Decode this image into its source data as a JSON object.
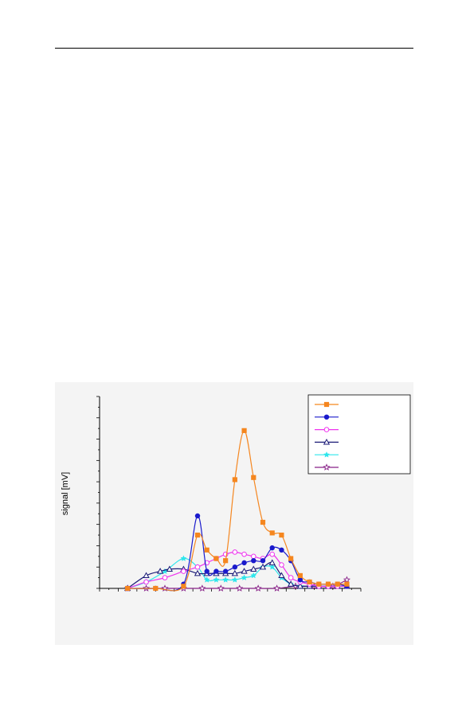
{
  "chart_data": {
    "type": "line",
    "title": "",
    "xlabel": "",
    "ylabel": "signal [mV]",
    "xlim": [
      0,
      28
    ],
    "ylim": [
      0,
      9
    ],
    "grid": false,
    "legend_position": "top-right",
    "series": [
      {
        "marker": "square-filled",
        "color": "#f5861f",
        "x": [
          3,
          6,
          9,
          10.5,
          11.5,
          12.5,
          13.5,
          14.5,
          15.5,
          16.5,
          17.5,
          18.5,
          19.5,
          20.5,
          21.5,
          22.5,
          23.5,
          24.5,
          25.5,
          26.5
        ],
        "y": [
          0,
          0,
          0.1,
          2.5,
          1.8,
          1.4,
          1.3,
          5.1,
          7.4,
          5.2,
          3.1,
          2.6,
          2.5,
          1.4,
          0.6,
          0.3,
          0.2,
          0.2,
          0.2,
          0.2
        ]
      },
      {
        "marker": "circle-filled",
        "color": "#1a1acc",
        "x": [
          3,
          6,
          9,
          10.5,
          11.5,
          12.5,
          13.5,
          14.5,
          15.5,
          16.5,
          17.5,
          18.5,
          19.5,
          20.5,
          21.5,
          22.5,
          23.5,
          24.5,
          25.5,
          26.5
        ],
        "y": [
          0,
          0,
          0.2,
          3.4,
          0.8,
          0.8,
          0.8,
          1.0,
          1.2,
          1.3,
          1.3,
          1.9,
          1.8,
          1.3,
          0.4,
          0.3,
          0.2,
          0.2,
          0.2,
          0.1
        ]
      },
      {
        "marker": "circle-open",
        "color": "#ee33ee",
        "x": [
          3,
          5,
          7,
          9,
          10.5,
          11.5,
          12.5,
          13.5,
          14.5,
          15.5,
          16.5,
          17.5,
          18.5,
          19.5,
          20.5,
          21.5,
          22.5,
          23.5,
          24.5,
          25.5,
          26.5
        ],
        "y": [
          0,
          0.3,
          0.5,
          0.8,
          1.0,
          1.2,
          1.4,
          1.6,
          1.7,
          1.6,
          1.5,
          1.4,
          1.6,
          1.1,
          0.5,
          0.3,
          0.2,
          0.1,
          0.1,
          0.1,
          0.1
        ]
      },
      {
        "marker": "triangle-open",
        "color": "#1a1a77",
        "x": [
          3,
          5,
          6.5,
          7.5,
          9,
          10.5,
          11.5,
          12.5,
          13.5,
          14.5,
          15.5,
          16.5,
          17.5,
          18.5,
          19.5,
          20.5,
          21.5,
          22.5,
          23.5,
          24.5,
          25.5,
          26.5
        ],
        "y": [
          0,
          0.6,
          0.8,
          0.9,
          0.9,
          0.7,
          0.7,
          0.7,
          0.7,
          0.7,
          0.8,
          0.9,
          1.0,
          1.2,
          0.6,
          0.2,
          0.1,
          0.1,
          0.1,
          0.1,
          0.1,
          0.1
        ]
      },
      {
        "marker": "star-filled",
        "color": "#2de6ec",
        "x": [
          3,
          5,
          7,
          9,
          10.5,
          11.5,
          12.5,
          13.5,
          14.5,
          15.5,
          16.5,
          17.5,
          18.5,
          19.5,
          20.5,
          21.5,
          22.5,
          23.5,
          24.5,
          25.5,
          26.5
        ],
        "y": [
          0,
          0.3,
          0.8,
          1.4,
          1.0,
          0.4,
          0.4,
          0.4,
          0.4,
          0.5,
          0.6,
          1.0,
          1.0,
          0.5,
          0.2,
          0.1,
          0.1,
          0.1,
          0.1,
          0.1,
          0.1
        ]
      },
      {
        "marker": "star-open",
        "color": "#882288",
        "x": [
          3,
          5,
          7,
          9,
          11,
          13,
          15,
          17,
          19,
          21,
          23,
          25,
          26.5
        ],
        "y": [
          0,
          0,
          0,
          0,
          0,
          0,
          0,
          0,
          0,
          0.1,
          0.1,
          0.1,
          0.4
        ]
      }
    ]
  }
}
